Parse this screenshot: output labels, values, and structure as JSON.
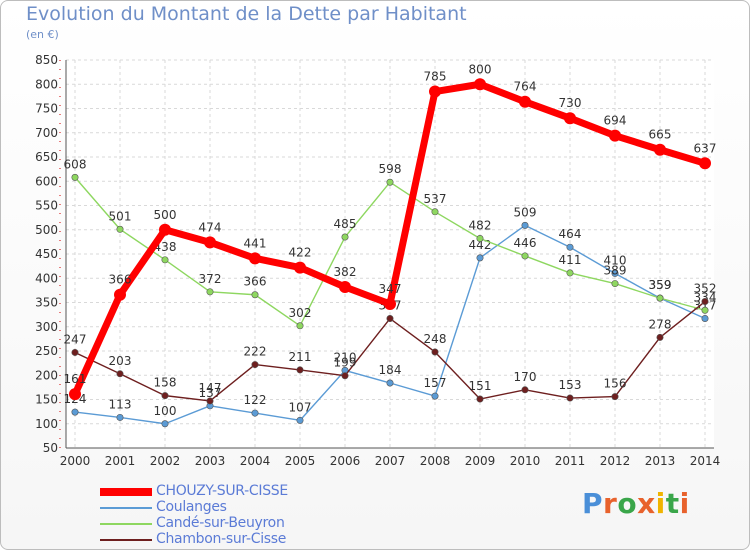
{
  "header": {
    "title": "Evolution du Montant de la Dette par Habitant",
    "unit": "(en €)"
  },
  "brand": {
    "logo_text": "Proxiti",
    "letter_colors": [
      "#4a8fd8",
      "#e8622c",
      "#3aa64a",
      "#e8622c",
      "#f0b400",
      "#3aa64a",
      "#e8622c"
    ]
  },
  "chart_data": {
    "type": "line",
    "title": "Evolution du Montant de la Dette par Habitant",
    "ylabel": "(en €)",
    "xlabel": "",
    "x": [
      "2000",
      "2001",
      "2002",
      "2003",
      "2004",
      "2005",
      "2006",
      "2007",
      "2008",
      "2009",
      "2010",
      "2011",
      "2012",
      "2013",
      "2014"
    ],
    "ylim": [
      50,
      850
    ],
    "yticks": [
      50,
      100,
      150,
      200,
      250,
      300,
      350,
      400,
      450,
      500,
      550,
      600,
      650,
      700,
      750,
      800,
      850
    ],
    "grid": true,
    "legend": "bottom-left",
    "series": [
      {
        "name": "Coulanges",
        "color": "#5b9bd5",
        "values": [
          124,
          113,
          100,
          137,
          122,
          107,
          210,
          184,
          157,
          442,
          509,
          464,
          410,
          359,
          317
        ]
      },
      {
        "name": "Candé-sur-Beuyron",
        "color": "#8ed760",
        "values": [
          608,
          501,
          438,
          372,
          366,
          302,
          485,
          598,
          537,
          482,
          446,
          411,
          389,
          359,
          334
        ]
      },
      {
        "name": "Chambon-sur-Cisse",
        "color": "#6e1f1f",
        "values": [
          247,
          203,
          158,
          147,
          222,
          211,
          199,
          317,
          248,
          151,
          170,
          153,
          156,
          278,
          352
        ]
      },
      {
        "name": "CHOUZY-SUR-CISSE",
        "color": "#ff0000",
        "values": [
          161,
          366,
          500,
          474,
          441,
          422,
          382,
          347,
          785,
          800,
          764,
          730,
          694,
          665,
          637
        ]
      }
    ],
    "legend_order": [
      "CHOUZY-SUR-CISSE",
      "Coulanges",
      "Candé-sur-Beuyron",
      "Chambon-sur-Cisse"
    ]
  }
}
